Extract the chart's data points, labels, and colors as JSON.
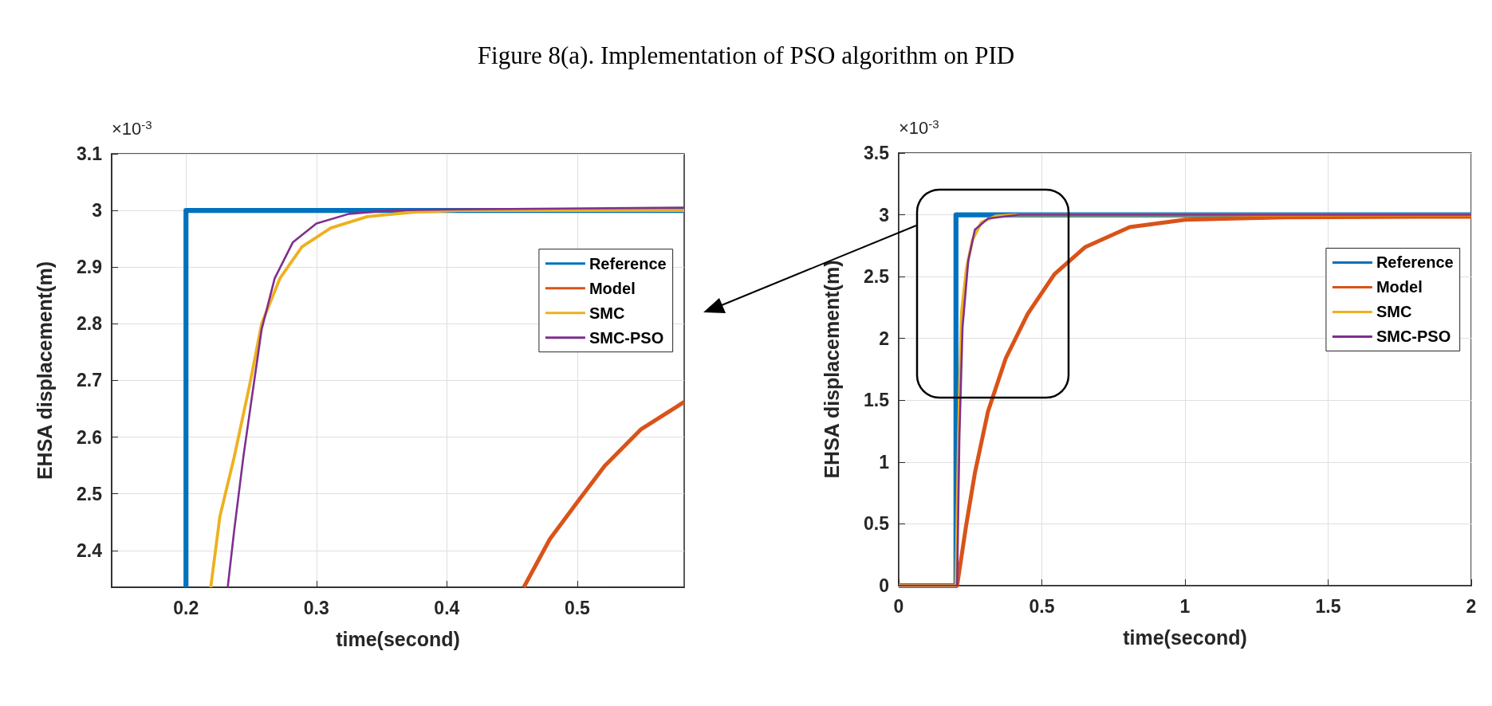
{
  "chart_data": [
    {
      "type": "line",
      "title": "Figure 8(a). Implementation of PSO algorithm on PID",
      "xlabel": "time(second)",
      "ylabel": "EHSA displacement(m)",
      "annotations": [
        "×10$^{-3}$"
      ],
      "xlim": [
        0.143,
        0.582
      ],
      "ylim": [
        2.335,
        3.1
      ],
      "xticks": [
        0.2,
        0.3,
        0.4,
        0.5
      ],
      "yticks": [
        2.4,
        2.5,
        2.6,
        2.7,
        2.8,
        2.9,
        3,
        3.1
      ],
      "grid": true,
      "legend": "right",
      "marker": "none",
      "line_style": "solid",
      "series": [
        {
          "name": "Reference",
          "color": "#0072bd",
          "x": [
            0.2,
            0.2,
            0.582
          ],
          "values": [
            2.335,
            3,
            3
          ]
        },
        {
          "name": "Model",
          "color": "#d95319",
          "x": [
            0.459,
            0.479,
            0.5,
            0.521,
            0.549,
            0.582
          ],
          "values": [
            2.335,
            2.42,
            2.485,
            2.549,
            2.614,
            2.662
          ]
        },
        {
          "name": "SMC",
          "color": "#edb120",
          "x": [
            0.219,
            0.226,
            0.237,
            0.249,
            0.258,
            0.272,
            0.289,
            0.311,
            0.339,
            0.374,
            0.409,
            0.582
          ],
          "values": [
            2.335,
            2.46,
            2.565,
            2.694,
            2.8,
            2.88,
            2.936,
            2.969,
            2.989,
            2.997,
            3,
            3
          ]
        },
        {
          "name": "SMC-PSO",
          "color": "#7e2f8e",
          "x": [
            0.232,
            0.237,
            0.244,
            0.251,
            0.258,
            0.268,
            0.282,
            0.3,
            0.325,
            0.356,
            0.409,
            0.582
          ],
          "values": [
            2.335,
            2.436,
            2.565,
            2.678,
            2.79,
            2.88,
            2.944,
            2.977,
            2.994,
            3,
            3.002,
            3.005
          ]
        }
      ]
    },
    {
      "type": "line",
      "xlabel": "time(second)",
      "ylabel": "EHSA displacement(m)",
      "annotations": [
        "×10$^{-3}$"
      ],
      "xlim": [
        0,
        2
      ],
      "ylim": [
        0,
        3.5
      ],
      "xticks": [
        0,
        0.5,
        1,
        1.5,
        2
      ],
      "yticks": [
        0,
        0.5,
        1,
        1.5,
        2,
        2.5,
        3,
        3.5
      ],
      "grid": true,
      "legend": "right",
      "marker": "none",
      "line_style": "solid",
      "series": [
        {
          "name": "Reference",
          "color": "#0072bd",
          "x": [
            0,
            0.2,
            0.2,
            2
          ],
          "values": [
            0,
            0,
            3,
            3
          ]
        },
        {
          "name": "Model",
          "color": "#d95319",
          "x": [
            0,
            0.204,
            0.235,
            0.266,
            0.312,
            0.374,
            0.451,
            0.544,
            0.652,
            0.807,
            1,
            1.348,
            2
          ],
          "values": [
            0,
            0,
            0.48,
            0.91,
            1.41,
            1.84,
            2.2,
            2.52,
            2.74,
            2.9,
            2.96,
            2.98,
            2.985
          ]
        },
        {
          "name": "SMC",
          "color": "#edb120",
          "x": [
            0,
            0.2,
            0.209,
            0.219,
            0.237,
            0.258,
            0.289,
            0.339,
            0.409,
            2
          ],
          "values": [
            0,
            0,
            1.2,
            2.2,
            2.57,
            2.8,
            2.94,
            2.99,
            3,
            3
          ]
        },
        {
          "name": "SMC-PSO",
          "color": "#7e2f8e",
          "x": [
            0,
            0.204,
            0.212,
            0.223,
            0.243,
            0.266,
            0.312,
            0.42,
            2
          ],
          "values": [
            0,
            0,
            1.2,
            2.09,
            2.63,
            2.88,
            2.97,
            3,
            3
          ]
        }
      ]
    }
  ]
}
